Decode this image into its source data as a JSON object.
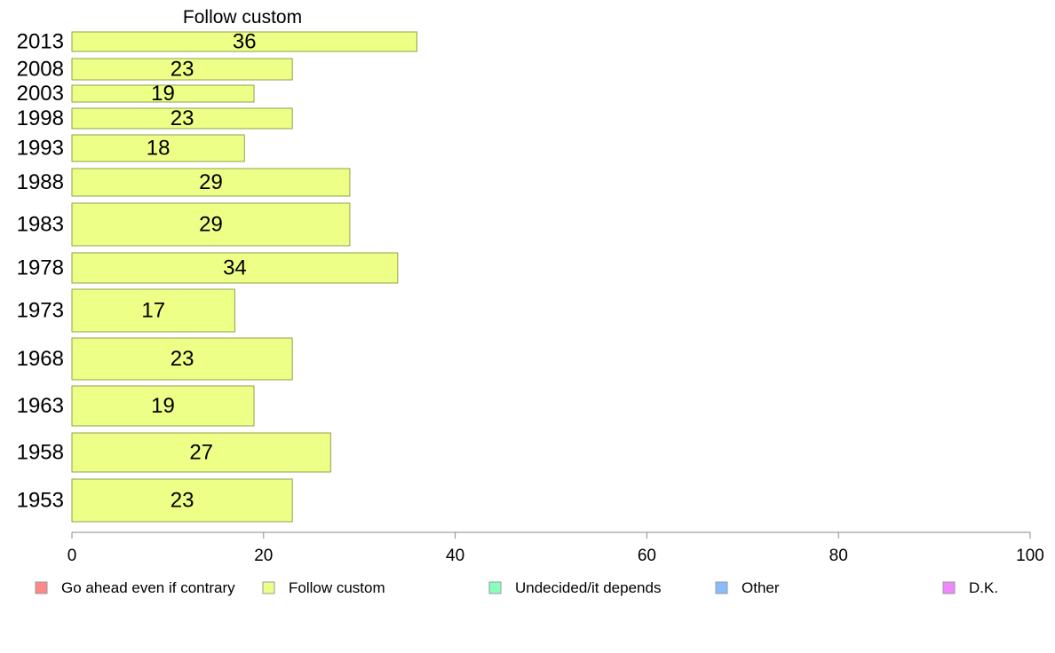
{
  "chart_data": {
    "type": "bar",
    "orientation": "horizontal",
    "title": "Follow custom",
    "xlabel": "",
    "ylabel": "",
    "xlim": [
      0,
      100
    ],
    "xticks": [
      0,
      20,
      40,
      60,
      80,
      100
    ],
    "grid": false,
    "categories": [
      "2013",
      "2008",
      "2003",
      "1998",
      "1993",
      "1988",
      "1983",
      "1978",
      "1973",
      "1968",
      "1963",
      "1958",
      "1953"
    ],
    "series": [
      {
        "name": "Follow custom",
        "color": "#eeff88",
        "values": [
          36,
          23,
          19,
          23,
          18,
          29,
          29,
          34,
          17,
          23,
          19,
          27,
          23
        ]
      }
    ],
    "legend": {
      "placement": "bottom",
      "items": [
        {
          "label": "Go ahead even if contrary",
          "color": "#ff8888"
        },
        {
          "label": "Follow custom",
          "color": "#eeff88"
        },
        {
          "label": "Undecided/it depends",
          "color": "#88ffbb"
        },
        {
          "label": "Other",
          "color": "#88bbff"
        },
        {
          "label": "D.K.",
          "color": "#ee88ff"
        }
      ]
    }
  }
}
